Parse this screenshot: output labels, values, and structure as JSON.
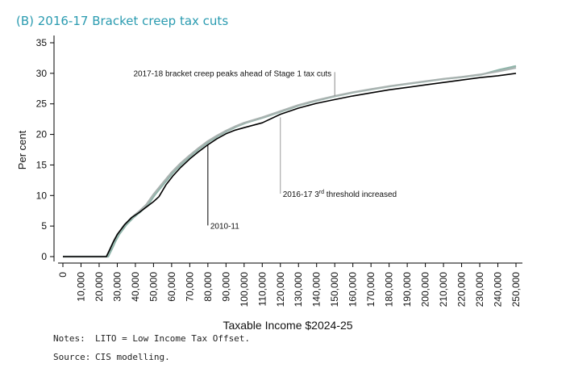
{
  "title": "(B) 2016-17 Bracket creep tax cuts",
  "notes": {
    "label": "Notes:",
    "text": "LITO = Low Income Tax Offset."
  },
  "source": {
    "label": "Source:",
    "text": "CIS modelling."
  },
  "chart_data": {
    "type": "line",
    "xlabel": "Taxable Income $2024-25",
    "ylabel": "Per cent",
    "xlim": [
      0,
      250000
    ],
    "ylim": [
      0,
      35
    ],
    "x_ticks": [
      "0",
      "10,000",
      "20,000",
      "30,000",
      "40,000",
      "50,000",
      "60,000",
      "70,000",
      "80,000",
      "90,000",
      "100,000",
      "110,000",
      "120,000",
      "130,000",
      "140,000",
      "150,000",
      "160,000",
      "170,000",
      "180,000",
      "190,000",
      "200,000",
      "210,000",
      "220,000",
      "230,000",
      "240,000",
      "250,000"
    ],
    "y_ticks": [
      "0",
      "5",
      "10",
      "15",
      "20",
      "25",
      "30",
      "35"
    ],
    "grid": false,
    "colors": {
      "series_2010": "#000000",
      "series_2016": "#a9b2b0",
      "series_2017": "#8fb5aa"
    },
    "series": [
      {
        "name": "2010-11",
        "x": [
          0,
          24000,
          26000,
          28000,
          30000,
          34000,
          38000,
          42000,
          46000,
          50000,
          53000,
          57000,
          61000,
          65000,
          70000,
          75000,
          80000,
          85000,
          90000,
          95000,
          100000,
          110000,
          120000,
          130000,
          140000,
          150000,
          160000,
          170000,
          180000,
          190000,
          200000,
          210000,
          220000,
          230000,
          240000,
          250000
        ],
        "y": [
          0,
          0,
          1.2,
          2.5,
          3.6,
          5.2,
          6.4,
          7.2,
          8.1,
          9.0,
          9.8,
          11.8,
          13.3,
          14.6,
          16.0,
          17.2,
          18.3,
          19.3,
          20.1,
          20.7,
          21.1,
          21.9,
          23.3,
          24.3,
          25.1,
          25.7,
          26.3,
          26.8,
          27.3,
          27.7,
          28.1,
          28.5,
          28.9,
          29.3,
          29.6,
          30.0
        ]
      },
      {
        "name": "2016-17",
        "x": [
          0,
          24000,
          26000,
          28000,
          30000,
          34000,
          38000,
          42000,
          46000,
          50000,
          55000,
          60000,
          65000,
          70000,
          75000,
          80000,
          85000,
          90000,
          95000,
          100000,
          110000,
          120000,
          130000,
          140000,
          150000,
          160000,
          170000,
          180000,
          190000,
          200000,
          210000,
          220000,
          230000,
          240000,
          250000
        ],
        "y": [
          0,
          0,
          1.2,
          2.5,
          3.6,
          5.2,
          6.4,
          7.4,
          8.5,
          10.2,
          12.0,
          13.8,
          15.3,
          16.6,
          17.8,
          18.9,
          19.8,
          20.6,
          21.3,
          21.9,
          22.8,
          23.8,
          24.8,
          25.6,
          26.3,
          26.9,
          27.4,
          27.9,
          28.3,
          28.7,
          29.1,
          29.4,
          29.8,
          30.3,
          30.9
        ]
      },
      {
        "name": "2017-18",
        "x": [
          0,
          25000,
          27000,
          29000,
          31000,
          35000,
          39000,
          43000,
          47000,
          51000,
          56000,
          61000,
          66000,
          71000,
          76000,
          81000,
          86000,
          91000,
          96000,
          101000,
          111000,
          121000,
          131000,
          141000,
          151000,
          161000,
          171000,
          181000,
          191000,
          201000,
          211000,
          221000,
          231000,
          241000,
          250000
        ],
        "y": [
          0,
          0,
          1.2,
          2.5,
          3.6,
          5.2,
          6.4,
          7.4,
          8.5,
          10.2,
          12.0,
          13.8,
          15.3,
          16.6,
          17.8,
          18.9,
          19.8,
          20.6,
          21.3,
          21.9,
          22.8,
          23.8,
          24.8,
          25.6,
          26.3,
          26.9,
          27.4,
          27.9,
          28.3,
          28.7,
          29.1,
          29.4,
          29.8,
          30.6,
          31.2
        ]
      }
    ],
    "annotations": [
      {
        "id": "ann-2017",
        "text": "2017-18 bracket creep peaks ahead of Stage 1 tax cuts",
        "x": 150000,
        "y_from": 26.3,
        "y_to": 30.2
      },
      {
        "id": "ann-2016",
        "text": "2016-17 3",
        "sup": "rd",
        "text_after": " threshold increased",
        "x": 120000,
        "y_from": 22.8,
        "y_to": 10.3
      },
      {
        "id": "ann-2010",
        "text": "2010-11",
        "x": 80000,
        "y_from": 18.3,
        "y_to": 5.1
      }
    ]
  }
}
